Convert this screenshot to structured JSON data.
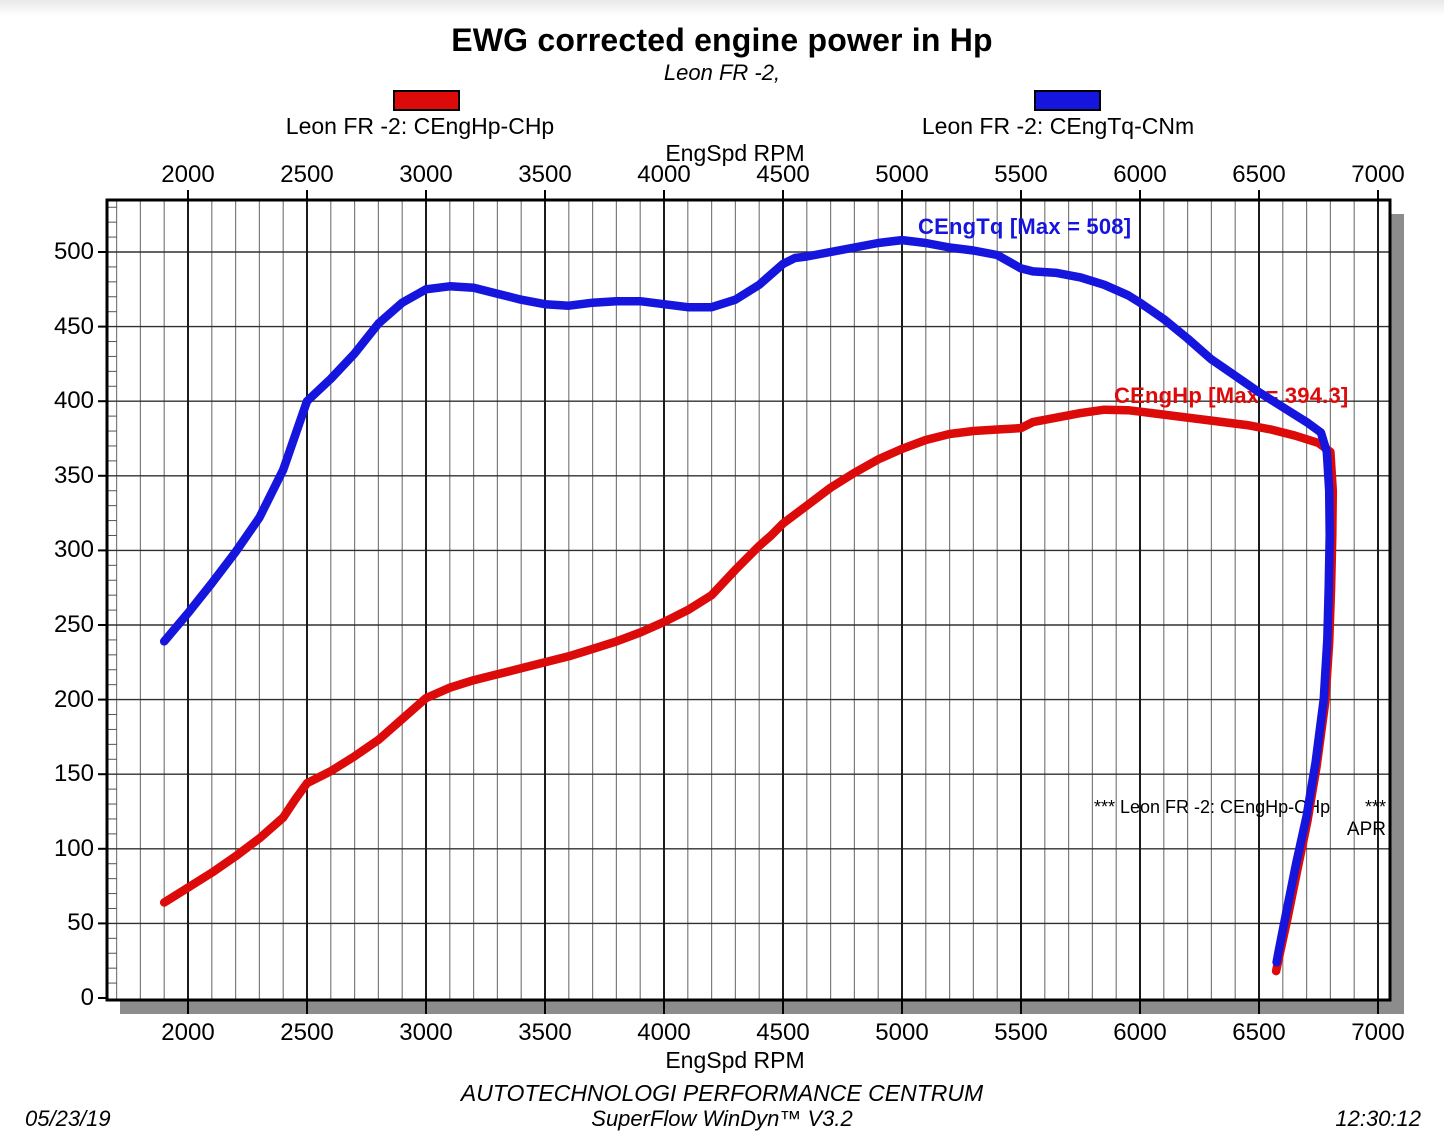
{
  "title": "EWG corrected engine power in Hp",
  "subtitle": "Leon FR -2,",
  "legend": [
    {
      "label": "Leon FR -2: CEngHp-CHp",
      "color": "#dd0a0a"
    },
    {
      "label": "Leon FR -2: CEngTq-CNm",
      "color": "#1515dd"
    }
  ],
  "axes": {
    "top_label": "EngSpd RPM",
    "bottom_label": "EngSpd RPM",
    "x_tick_labels": [
      "2000",
      "2500",
      "3000",
      "3500",
      "4000",
      "4500",
      "5000",
      "5500",
      "6000",
      "6500",
      "7000"
    ],
    "y_tick_labels": [
      "0",
      "50",
      "100",
      "150",
      "200",
      "250",
      "300",
      "350",
      "400",
      "450",
      "500"
    ]
  },
  "curve_labels": {
    "torque": "CEngTq [Max = 508]",
    "power": "CEngHp [Max = 394.3]"
  },
  "annotations": {
    "run_line": "*** Leon FR -2: CEngHp-CHp",
    "run_stars": "***",
    "apr": "APR"
  },
  "footer": {
    "center_line1": "AUTOTECHNOLOGI PERFORMANCE CENTRUM",
    "center_line2": "SuperFlow WinDyn™ V3.2",
    "date": "05/23/19",
    "time": "12:30:12"
  },
  "chart_data": {
    "type": "line",
    "title": "EWG corrected engine power in Hp",
    "xlabel": "EngSpd RPM",
    "x_major_ticks": [
      2000,
      2500,
      3000,
      3500,
      4000,
      4500,
      5000,
      5500,
      6000,
      6500,
      7000
    ],
    "x_minor_step_rpm": 100,
    "y_major_ticks": [
      0,
      50,
      100,
      150,
      200,
      250,
      300,
      350,
      400,
      450,
      500
    ],
    "y_minor_step": 10,
    "x_visible_range": [
      1660,
      7050
    ],
    "y_visible_range": [
      0,
      535
    ],
    "grid": true,
    "legend_position": "top",
    "series": [
      {
        "name": "Leon FR -2: CEngHp-CHp",
        "channel": "CEngHp",
        "unit": "CHp",
        "max": 394.3,
        "color": "#dd0a0a",
        "points": [
          [
            1900,
            64
          ],
          [
            2000,
            74
          ],
          [
            2100,
            84
          ],
          [
            2200,
            95
          ],
          [
            2300,
            107
          ],
          [
            2400,
            121
          ],
          [
            2450,
            133
          ],
          [
            2500,
            144
          ],
          [
            2600,
            152
          ],
          [
            2700,
            162
          ],
          [
            2800,
            173
          ],
          [
            2900,
            187
          ],
          [
            2950,
            194
          ],
          [
            3000,
            201
          ],
          [
            3100,
            208
          ],
          [
            3200,
            213
          ],
          [
            3300,
            217
          ],
          [
            3400,
            221
          ],
          [
            3500,
            225
          ],
          [
            3600,
            229
          ],
          [
            3700,
            234
          ],
          [
            3800,
            239
          ],
          [
            3900,
            245
          ],
          [
            4000,
            252
          ],
          [
            4100,
            260
          ],
          [
            4200,
            270
          ],
          [
            4300,
            287
          ],
          [
            4400,
            303
          ],
          [
            4450,
            310
          ],
          [
            4500,
            318
          ],
          [
            4600,
            330
          ],
          [
            4700,
            342
          ],
          [
            4800,
            352
          ],
          [
            4900,
            361
          ],
          [
            5000,
            368
          ],
          [
            5100,
            374
          ],
          [
            5200,
            378
          ],
          [
            5300,
            380
          ],
          [
            5400,
            381
          ],
          [
            5500,
            382
          ],
          [
            5550,
            386
          ],
          [
            5650,
            389
          ],
          [
            5750,
            392
          ],
          [
            5850,
            394.3
          ],
          [
            5950,
            394
          ],
          [
            6050,
            392
          ],
          [
            6150,
            390
          ],
          [
            6250,
            388
          ],
          [
            6350,
            386
          ],
          [
            6450,
            384
          ],
          [
            6550,
            381
          ],
          [
            6650,
            377
          ],
          [
            6750,
            372
          ],
          [
            6800,
            366
          ],
          [
            6810,
            340
          ],
          [
            6808,
            310
          ],
          [
            6803,
            275
          ],
          [
            6795,
            238
          ],
          [
            6778,
            198
          ],
          [
            6742,
            155
          ],
          [
            6703,
            118
          ],
          [
            6660,
            85
          ],
          [
            6618,
            52
          ],
          [
            6588,
            30
          ],
          [
            6572,
            18
          ]
        ]
      },
      {
        "name": "Leon FR -2: CEngTq-CNm",
        "channel": "CEngTq",
        "unit": "CNm",
        "max": 508,
        "color": "#1515dd",
        "points": [
          [
            1900,
            239
          ],
          [
            2000,
            258
          ],
          [
            2100,
            278
          ],
          [
            2200,
            299
          ],
          [
            2300,
            322
          ],
          [
            2400,
            354
          ],
          [
            2500,
            400
          ],
          [
            2600,
            415
          ],
          [
            2700,
            432
          ],
          [
            2800,
            452
          ],
          [
            2900,
            466
          ],
          [
            3000,
            475
          ],
          [
            3100,
            477
          ],
          [
            3200,
            476
          ],
          [
            3300,
            472
          ],
          [
            3400,
            468
          ],
          [
            3500,
            465
          ],
          [
            3600,
            464
          ],
          [
            3700,
            466
          ],
          [
            3800,
            467
          ],
          [
            3900,
            467
          ],
          [
            4000,
            465
          ],
          [
            4100,
            463
          ],
          [
            4200,
            463
          ],
          [
            4300,
            468
          ],
          [
            4400,
            478
          ],
          [
            4500,
            492
          ],
          [
            4550,
            496
          ],
          [
            4600,
            497
          ],
          [
            4700,
            500
          ],
          [
            4800,
            503
          ],
          [
            4900,
            506
          ],
          [
            5000,
            508
          ],
          [
            5100,
            506
          ],
          [
            5200,
            503
          ],
          [
            5300,
            501
          ],
          [
            5400,
            498
          ],
          [
            5500,
            489
          ],
          [
            5550,
            487
          ],
          [
            5650,
            486
          ],
          [
            5750,
            483
          ],
          [
            5850,
            478
          ],
          [
            5950,
            471
          ],
          [
            6000,
            466
          ],
          [
            6100,
            455
          ],
          [
            6200,
            442
          ],
          [
            6300,
            428
          ],
          [
            6400,
            417
          ],
          [
            6500,
            406
          ],
          [
            6600,
            396
          ],
          [
            6700,
            386
          ],
          [
            6760,
            379
          ],
          [
            6785,
            366
          ],
          [
            6795,
            340
          ],
          [
            6797,
            310
          ],
          [
            6793,
            275
          ],
          [
            6787,
            240
          ],
          [
            6772,
            200
          ],
          [
            6738,
            158
          ],
          [
            6700,
            122
          ],
          [
            6656,
            90
          ],
          [
            6613,
            56
          ],
          [
            6583,
            32
          ],
          [
            6574,
            24
          ]
        ]
      }
    ]
  }
}
